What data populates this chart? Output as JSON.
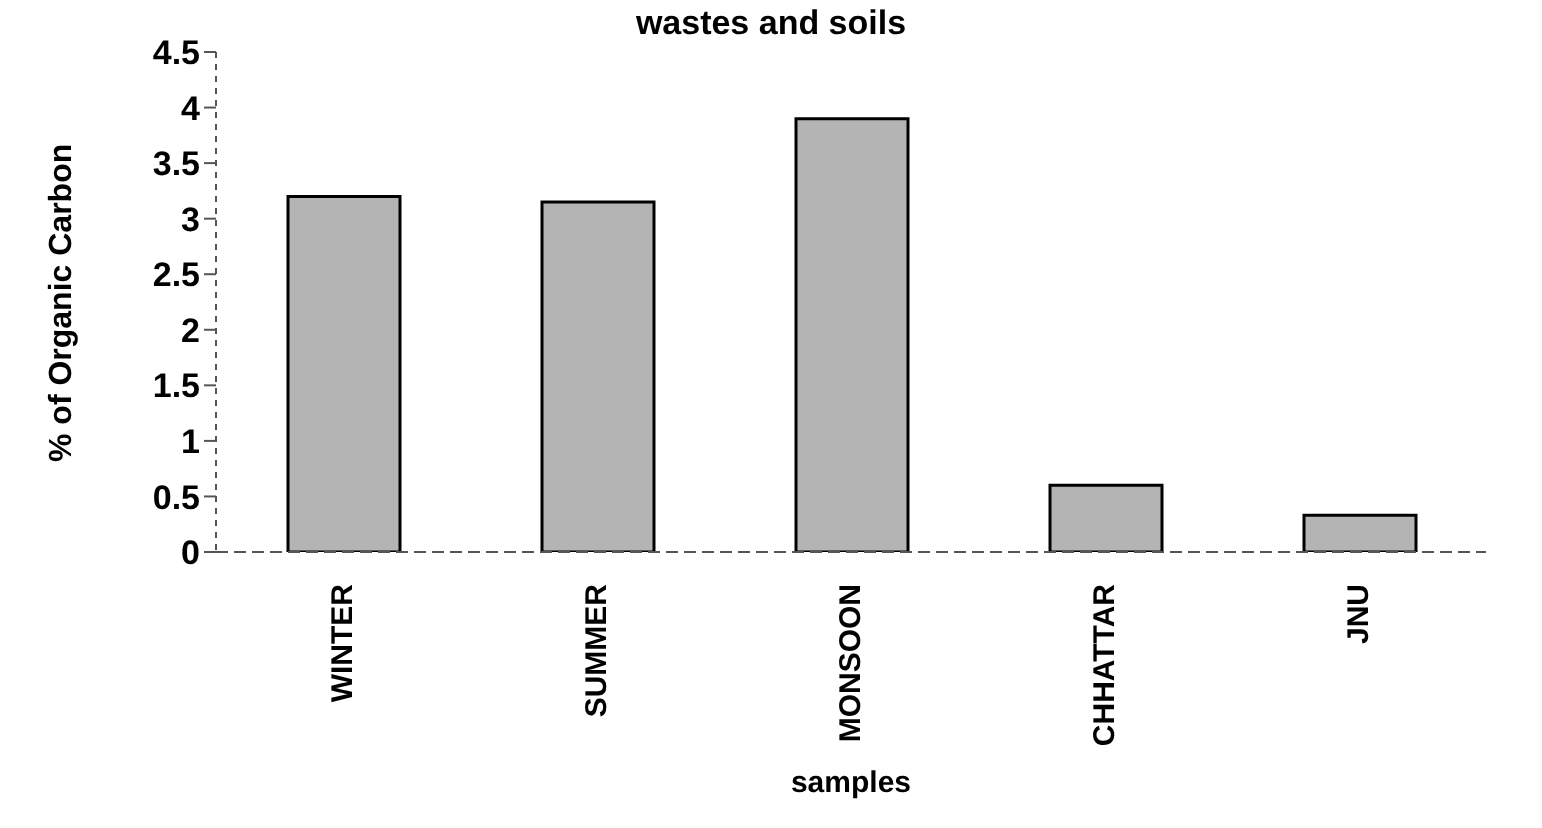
{
  "chart_data": {
    "type": "bar",
    "title": "wastes and soils",
    "xlabel": "samples",
    "ylabel": "% of Organic Carbon",
    "categories": [
      "WINTER",
      "SUMMER",
      "MONSOON",
      "CHHATTAR",
      "JNU"
    ],
    "values": [
      3.2,
      3.15,
      3.9,
      0.6,
      0.33
    ],
    "color": "#b4b4b4",
    "ylim": [
      0,
      4.5
    ],
    "yticks": [
      0,
      0.5,
      1,
      1.5,
      2,
      2.5,
      3,
      3.5,
      4,
      4.5
    ],
    "grid": false
  }
}
